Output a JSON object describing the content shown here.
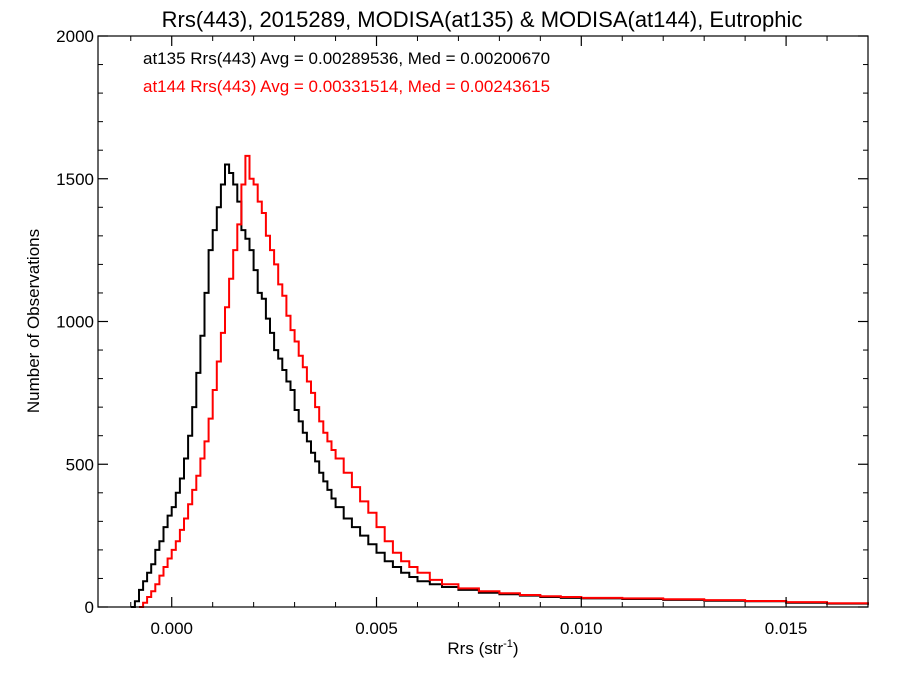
{
  "chart_data": {
    "type": "histogram-step",
    "title": "Rrs(443), 2015289, MODISA(at135) & MODISA(at144), Eutrophic",
    "xlabel_main": "Rrs (str",
    "xlabel_sup": "-1",
    "xlabel_close": ")",
    "ylabel": "Number of Observations",
    "xlim": [
      -0.0018,
      0.017
    ],
    "ylim": [
      0,
      2000
    ],
    "xticks": [
      0.0,
      0.005,
      0.01,
      0.015
    ],
    "xtick_labels": [
      "0.000",
      "0.005",
      "0.010",
      "0.015"
    ],
    "yticks": [
      0,
      500,
      1000,
      1500,
      2000
    ],
    "ytick_labels": [
      "0",
      "500",
      "1000",
      "1500",
      "2000"
    ],
    "annotations": [
      {
        "text": "at135 Rrs(443) Avg = 0.00289536, Med = 0.00200670",
        "color": "#000000"
      },
      {
        "text": "at144 Rrs(443) Avg = 0.00331514, Med = 0.00243615",
        "color": "#ff0000"
      }
    ],
    "series": [
      {
        "color": "#000000",
        "points": [
          [
            -0.001,
            0
          ],
          [
            -0.0009,
            20
          ],
          [
            -0.0008,
            60
          ],
          [
            -0.0007,
            90
          ],
          [
            -0.0006,
            120
          ],
          [
            -0.0005,
            150
          ],
          [
            -0.0004,
            200
          ],
          [
            -0.0003,
            230
          ],
          [
            -0.0002,
            280
          ],
          [
            -0.0001,
            320
          ],
          [
            0.0,
            350
          ],
          [
            0.0001,
            400
          ],
          [
            0.0002,
            450
          ],
          [
            0.0003,
            520
          ],
          [
            0.0004,
            600
          ],
          [
            0.0005,
            700
          ],
          [
            0.0006,
            820
          ],
          [
            0.0007,
            950
          ],
          [
            0.0008,
            1100
          ],
          [
            0.0009,
            1250
          ],
          [
            0.001,
            1320
          ],
          [
            0.0011,
            1400
          ],
          [
            0.0012,
            1480
          ],
          [
            0.0013,
            1550
          ],
          [
            0.0014,
            1520
          ],
          [
            0.0015,
            1480
          ],
          [
            0.0016,
            1420
          ],
          [
            0.0017,
            1320
          ],
          [
            0.0018,
            1290
          ],
          [
            0.0019,
            1250
          ],
          [
            0.002,
            1180
          ],
          [
            0.0021,
            1100
          ],
          [
            0.0022,
            1080
          ],
          [
            0.0023,
            1010
          ],
          [
            0.0024,
            960
          ],
          [
            0.0025,
            900
          ],
          [
            0.0026,
            870
          ],
          [
            0.0027,
            830
          ],
          [
            0.0028,
            790
          ],
          [
            0.0029,
            760
          ],
          [
            0.003,
            690
          ],
          [
            0.0031,
            650
          ],
          [
            0.0032,
            610
          ],
          [
            0.0033,
            580
          ],
          [
            0.0034,
            540
          ],
          [
            0.0035,
            510
          ],
          [
            0.0036,
            470
          ],
          [
            0.0037,
            440
          ],
          [
            0.0038,
            410
          ],
          [
            0.0039,
            380
          ],
          [
            0.004,
            350
          ],
          [
            0.0042,
            310
          ],
          [
            0.0044,
            280
          ],
          [
            0.0046,
            250
          ],
          [
            0.0048,
            220
          ],
          [
            0.005,
            190
          ],
          [
            0.0052,
            160
          ],
          [
            0.0054,
            140
          ],
          [
            0.0056,
            120
          ],
          [
            0.0058,
            105
          ],
          [
            0.006,
            90
          ],
          [
            0.0063,
            80
          ],
          [
            0.0066,
            70
          ],
          [
            0.007,
            60
          ],
          [
            0.0075,
            50
          ],
          [
            0.008,
            45
          ],
          [
            0.0085,
            40
          ],
          [
            0.009,
            35
          ],
          [
            0.0095,
            32
          ],
          [
            0.01,
            30
          ],
          [
            0.011,
            28
          ],
          [
            0.012,
            25
          ],
          [
            0.013,
            22
          ],
          [
            0.014,
            20
          ],
          [
            0.015,
            15
          ],
          [
            0.016,
            12
          ],
          [
            0.017,
            8
          ]
        ]
      },
      {
        "color": "#ff0000",
        "points": [
          [
            -0.0008,
            0
          ],
          [
            -0.0007,
            15
          ],
          [
            -0.0006,
            35
          ],
          [
            -0.0005,
            55
          ],
          [
            -0.0004,
            80
          ],
          [
            -0.0003,
            110
          ],
          [
            -0.0002,
            140
          ],
          [
            -0.0001,
            170
          ],
          [
            0.0,
            200
          ],
          [
            0.0001,
            230
          ],
          [
            0.0002,
            270
          ],
          [
            0.0003,
            310
          ],
          [
            0.0004,
            360
          ],
          [
            0.0005,
            410
          ],
          [
            0.0006,
            460
          ],
          [
            0.0007,
            520
          ],
          [
            0.0008,
            580
          ],
          [
            0.0009,
            660
          ],
          [
            0.001,
            760
          ],
          [
            0.0011,
            860
          ],
          [
            0.0012,
            960
          ],
          [
            0.0013,
            1050
          ],
          [
            0.0014,
            1150
          ],
          [
            0.0015,
            1250
          ],
          [
            0.0016,
            1340
          ],
          [
            0.0017,
            1480
          ],
          [
            0.0018,
            1580
          ],
          [
            0.0019,
            1500
          ],
          [
            0.002,
            1480
          ],
          [
            0.0021,
            1420
          ],
          [
            0.0022,
            1380
          ],
          [
            0.0023,
            1300
          ],
          [
            0.0024,
            1250
          ],
          [
            0.0025,
            1200
          ],
          [
            0.0026,
            1130
          ],
          [
            0.0027,
            1090
          ],
          [
            0.0028,
            1020
          ],
          [
            0.0029,
            970
          ],
          [
            0.003,
            930
          ],
          [
            0.0031,
            880
          ],
          [
            0.0032,
            840
          ],
          [
            0.0033,
            790
          ],
          [
            0.0034,
            750
          ],
          [
            0.0035,
            700
          ],
          [
            0.0036,
            650
          ],
          [
            0.0037,
            610
          ],
          [
            0.0038,
            580
          ],
          [
            0.0039,
            550
          ],
          [
            0.004,
            520
          ],
          [
            0.0042,
            470
          ],
          [
            0.0044,
            420
          ],
          [
            0.0046,
            370
          ],
          [
            0.0048,
            330
          ],
          [
            0.005,
            280
          ],
          [
            0.0052,
            230
          ],
          [
            0.0054,
            190
          ],
          [
            0.0056,
            160
          ],
          [
            0.0058,
            140
          ],
          [
            0.006,
            120
          ],
          [
            0.0063,
            95
          ],
          [
            0.0066,
            80
          ],
          [
            0.007,
            65
          ],
          [
            0.0075,
            55
          ],
          [
            0.008,
            48
          ],
          [
            0.0085,
            42
          ],
          [
            0.009,
            38
          ],
          [
            0.0095,
            35
          ],
          [
            0.01,
            32
          ],
          [
            0.011,
            30
          ],
          [
            0.012,
            27
          ],
          [
            0.013,
            24
          ],
          [
            0.014,
            21
          ],
          [
            0.015,
            17
          ],
          [
            0.016,
            13
          ],
          [
            0.017,
            9
          ]
        ]
      }
    ]
  }
}
